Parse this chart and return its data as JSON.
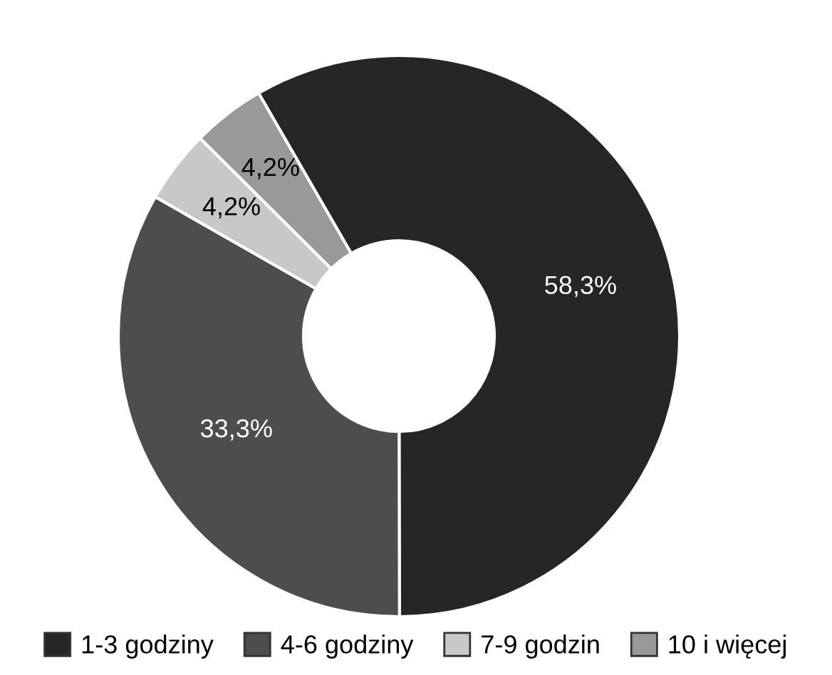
{
  "chart_data": {
    "type": "donut",
    "categories": [
      "1-3 godziny",
      "4-6 godziny",
      "7-9 godzin",
      "10 i więcej"
    ],
    "values": [
      58.3,
      33.3,
      4.2,
      4.2
    ],
    "colors": [
      "#262626",
      "#4d4d4d",
      "#c8c8c8",
      "#999999"
    ],
    "value_labels": [
      "58,3%",
      "33,3%",
      "4,2%",
      "4,2%"
    ],
    "legend": "bottom"
  }
}
